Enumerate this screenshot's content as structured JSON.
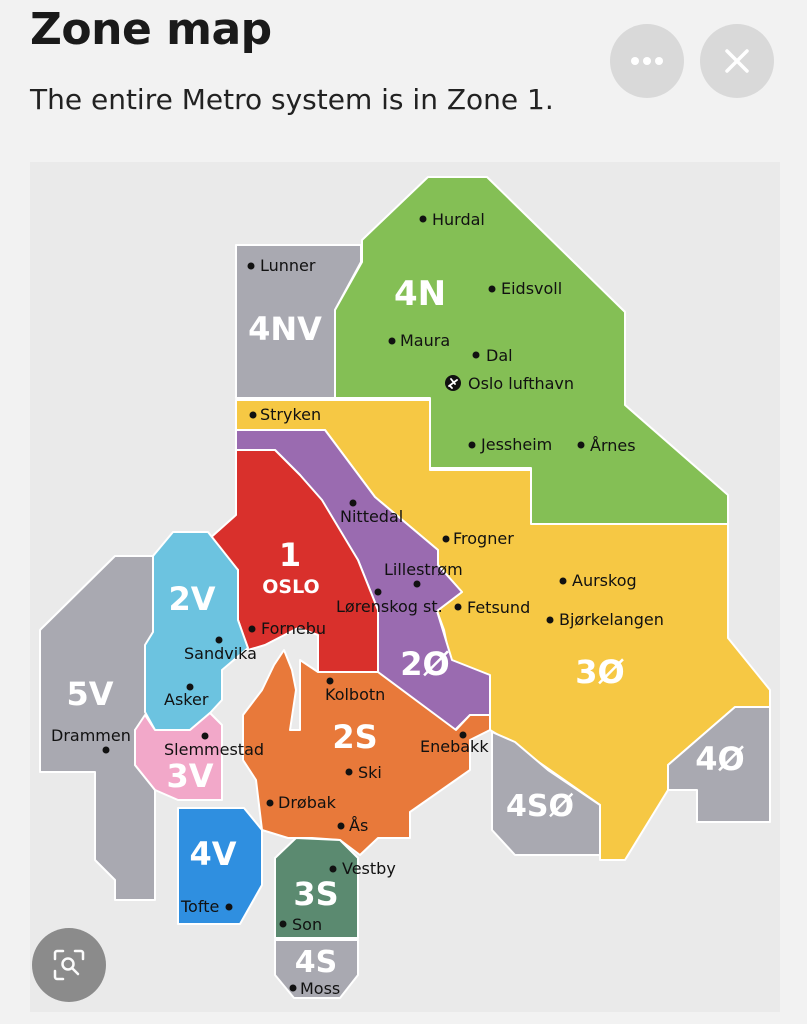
{
  "header": {
    "title": "Zone map",
    "subtitle": "The entire Metro system is in Zone 1."
  },
  "buttons": {
    "more_icon": "more-horizontal-icon",
    "close_icon": "close-icon",
    "lens_icon": "visual-search-icon"
  },
  "colors": {
    "zone_1": "#d9302c",
    "zone_2v": "#6cc3e0",
    "zone_3v": "#f2a8c9",
    "zone_4v": "#2f8fe0",
    "zone_2s": "#e8793a",
    "zone_3s": "#5b8a70",
    "zone_2o": "#9a6bb0",
    "zone_3o": "#f6c844",
    "zone_4n": "#84bf55",
    "zone_grey": "#a9a9b1"
  },
  "map": {
    "zones": {
      "z1": "1",
      "z1_city": "OSLO",
      "z2v": "2V",
      "z3v": "3V",
      "z4v": "4V",
      "z5v": "5V",
      "z2s": "2S",
      "z3s": "3S",
      "z4s": "4S",
      "z2o": "2Ø",
      "z3o": "3Ø",
      "z4o": "4Ø",
      "z4so": "4SØ",
      "z4n": "4N",
      "z4nv": "4NV"
    },
    "places": {
      "hurdal": "Hurdal",
      "lunner": "Lunner",
      "eidsvoll": "Eidsvoll",
      "maura": "Maura",
      "dal": "Dal",
      "oslo_lufthavn": "Oslo lufthavn",
      "stryken": "Stryken",
      "jessheim": "Jessheim",
      "arnes": "Årnes",
      "nittedal": "Nittedal",
      "frogner": "Frogner",
      "lillestrom": "Lillestrøm",
      "aurskog": "Aurskog",
      "lorenskog": "Lørenskog st.",
      "fetsund": "Fetsund",
      "bjorkelangen": "Bjørkelangen",
      "fornebu": "Fornebu",
      "sandvika": "Sandvika",
      "kolbotn": "Kolbotn",
      "asker": "Asker",
      "drammen": "Drammen",
      "slemmestad": "Slemmestad",
      "enebakk": "Enebakk",
      "ski": "Ski",
      "drobak": "Drøbak",
      "as": "Ås",
      "vestby": "Vestby",
      "tofte": "Tofte",
      "son": "Son",
      "moss": "Moss"
    },
    "airport_icon": "airplane-icon"
  }
}
